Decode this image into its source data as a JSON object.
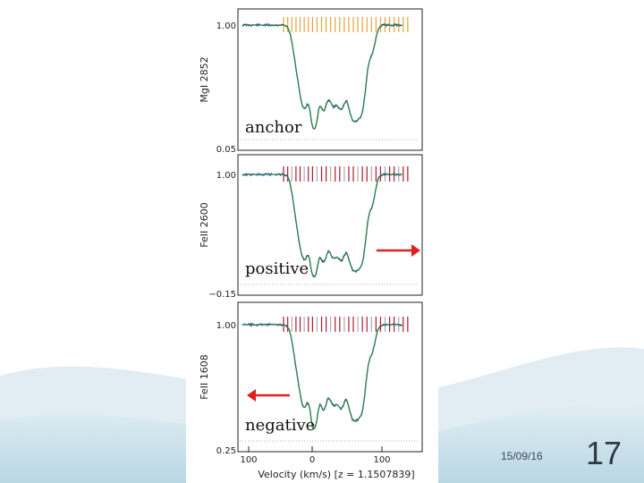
{
  "slide": {
    "date": "15/09/16",
    "page_number": "17"
  },
  "colors": {
    "anchor_ticks": "#e8a23a",
    "tick_red": "#b01a2a",
    "tick_gray": "#a8a8b8",
    "model_line": "#2e8b3a",
    "data_line": "#1f3d99",
    "arrow": "#e02020",
    "slide_wave": "#cfe3ec"
  },
  "chart_data": {
    "type": "line",
    "xlabel": "Velocity (km/s) [z = 1.1507839]",
    "x_tick_labels": [
      "100",
      "0",
      "100"
    ],
    "panels": [
      {
        "ylabel": "MgI 2852",
        "y_tick_labels": [
          "1.00",
          "0.05"
        ],
        "annotation": "anchor",
        "arrow": "none"
      },
      {
        "ylabel": "FeII 2600",
        "y_tick_labels": [
          "1.00",
          "−0.15"
        ],
        "annotation": "positive",
        "arrow": "right"
      },
      {
        "ylabel": "FeII 1608",
        "y_tick_labels": [
          "1.00",
          "0.25"
        ],
        "annotation": "negative",
        "arrow": "left"
      }
    ]
  }
}
